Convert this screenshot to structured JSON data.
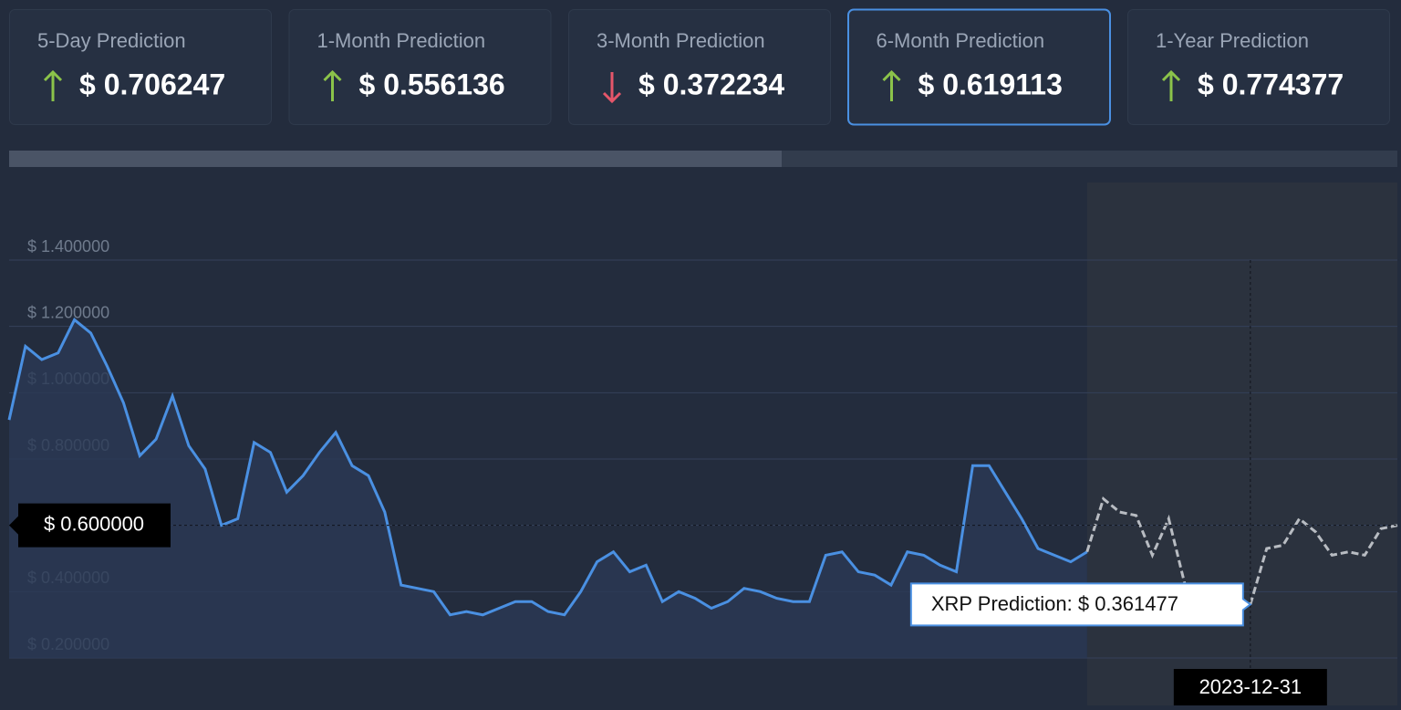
{
  "cards": [
    {
      "label": "5-Day Prediction",
      "direction": "up",
      "value": "$ 0.706247"
    },
    {
      "label": "1-Month Prediction",
      "direction": "up",
      "value": "$ 0.556136"
    },
    {
      "label": "3-Month Prediction",
      "direction": "down",
      "value": "$ 0.372234"
    },
    {
      "label": "6-Month Prediction",
      "direction": "up",
      "value": "$ 0.619113",
      "active": true
    },
    {
      "label": "1-Year Prediction",
      "direction": "up",
      "value": "$ 0.774377"
    }
  ],
  "chart_data": {
    "type": "line",
    "ylim": [
      0.2,
      1.4
    ],
    "yticks": [
      {
        "value": 0.2,
        "label": "$ 0.200000"
      },
      {
        "value": 0.4,
        "label": "$ 0.400000"
      },
      {
        "value": 0.6,
        "label": "$ 0.600000"
      },
      {
        "value": 0.8,
        "label": "$ 0.800000"
      },
      {
        "value": 1.0,
        "label": "$ 1.000000"
      },
      {
        "value": 1.2,
        "label": "$ 1.200000"
      },
      {
        "value": 1.4,
        "label": "$ 1.400000"
      }
    ],
    "grid": true,
    "series": [
      {
        "color": "#4a90e2",
        "style": "solid",
        "values": [
          0.918,
          1.14,
          1.1,
          1.12,
          1.22,
          1.18,
          1.08,
          0.97,
          0.81,
          0.86,
          0.99,
          0.84,
          0.77,
          0.6,
          0.62,
          0.85,
          0.82,
          0.7,
          0.75,
          0.82,
          0.88,
          0.78,
          0.75,
          0.64,
          0.42,
          0.41,
          0.4,
          0.33,
          0.34,
          0.33,
          0.35,
          0.37,
          0.37,
          0.34,
          0.33,
          0.4,
          0.49,
          0.52,
          0.46,
          0.48,
          0.37,
          0.4,
          0.38,
          0.35,
          0.37,
          0.41,
          0.4,
          0.38,
          0.37,
          0.37,
          0.51,
          0.52,
          0.46,
          0.45,
          0.42,
          0.52,
          0.51,
          0.48,
          0.46,
          0.78,
          0.78,
          0.7,
          0.62,
          0.53,
          0.51,
          0.49,
          0.52,
          null,
          null,
          null,
          null,
          null,
          null,
          null,
          null,
          null,
          null,
          null,
          null,
          null,
          null,
          null,
          null,
          null,
          null,
          null
        ]
      },
      {
        "color": "#b8bcc2",
        "style": "dashed",
        "values": [
          null,
          null,
          null,
          null,
          null,
          null,
          null,
          null,
          null,
          null,
          null,
          null,
          null,
          null,
          null,
          null,
          null,
          null,
          null,
          null,
          null,
          null,
          null,
          null,
          null,
          null,
          null,
          null,
          null,
          null,
          null,
          null,
          null,
          null,
          null,
          null,
          null,
          null,
          null,
          null,
          null,
          null,
          null,
          null,
          null,
          null,
          null,
          null,
          null,
          null,
          null,
          null,
          null,
          null,
          null,
          null,
          null,
          null,
          null,
          null,
          null,
          null,
          null,
          null,
          null,
          null,
          0.52,
          0.68,
          0.64,
          0.63,
          0.51,
          0.62,
          0.42,
          null,
          null,
          null,
          0.361477,
          0.53,
          0.54,
          0.62,
          0.58,
          0.51,
          0.52,
          0.51,
          0.59,
          0.6
        ]
      }
    ],
    "crosshair_y": {
      "value": 0.6,
      "label": "$ 0.600000"
    },
    "crosshair_x_label": "2023-12-31",
    "tooltip": "XRP Prediction: $ 0.361477"
  }
}
